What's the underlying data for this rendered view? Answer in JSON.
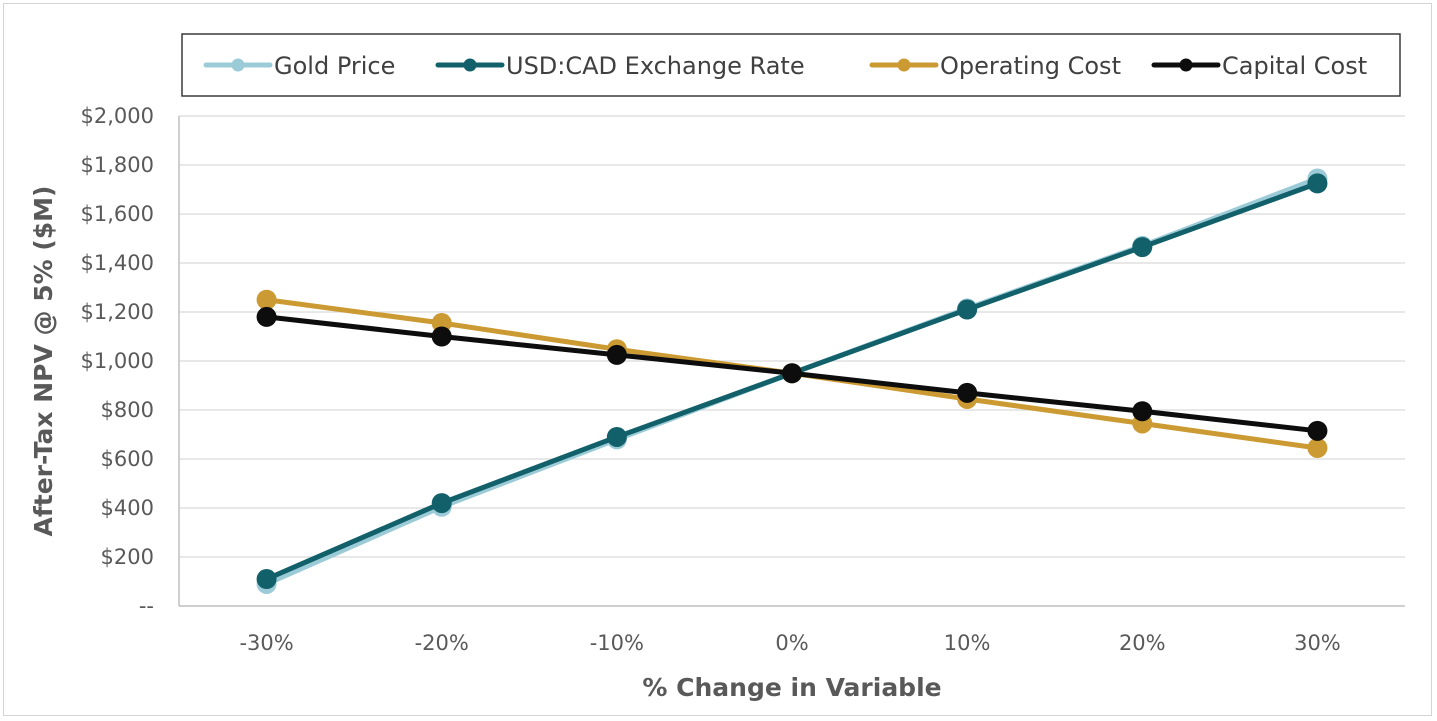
{
  "chart_data": {
    "type": "line",
    "title": "",
    "xlabel": "% Change in Variable",
    "ylabel": "After-Tax NPV @ 5% ($M)",
    "categories": [
      "-30%",
      "-20%",
      "-10%",
      "0%",
      "10%",
      "20%",
      "30%"
    ],
    "ylim": [
      0,
      2000
    ],
    "yticks": [
      0,
      200,
      400,
      600,
      800,
      1000,
      1200,
      1400,
      1600,
      1800,
      2000
    ],
    "ytick_labels": [
      "--",
      "$200",
      "$400",
      "$600",
      "$800",
      "$1,000",
      "$1,200",
      "$1,400",
      "$1,600",
      "$1,800",
      "$2,000"
    ],
    "grid": true,
    "legend_position": "top",
    "series": [
      {
        "name": "Gold Price",
        "color": "#9ccbd8",
        "values": [
          90,
          405,
          680,
          950,
          1215,
          1470,
          1745
        ]
      },
      {
        "name": "USD:CAD Exchange Rate",
        "color": "#12606a",
        "values": [
          110,
          420,
          690,
          950,
          1210,
          1465,
          1725
        ]
      },
      {
        "name": "Operating Cost",
        "color": "#cc9a32",
        "values": [
          1250,
          1155,
          1048,
          950,
          845,
          745,
          645
        ]
      },
      {
        "name": "Capital Cost",
        "color": "#0d0d0d",
        "values": [
          1180,
          1100,
          1025,
          950,
          870,
          795,
          715
        ]
      }
    ]
  }
}
